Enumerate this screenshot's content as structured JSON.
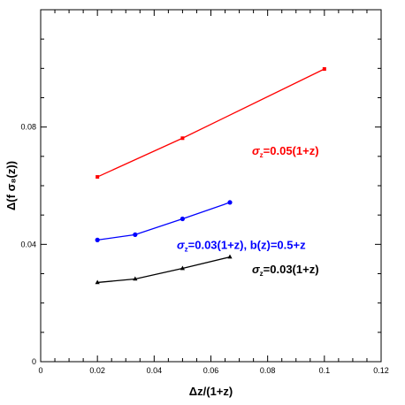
{
  "chart_data": {
    "type": "line",
    "title": "",
    "xlabel": "Δz/(1+z)",
    "ylabel": "Δ(f σ₈(z))",
    "xlim": [
      0,
      0.12
    ],
    "ylim": [
      0,
      0.12
    ],
    "x_ticks": [
      0,
      0.02,
      0.04,
      0.06,
      0.08,
      0.1,
      0.12
    ],
    "x_tick_labels": [
      "0",
      "0.02",
      "0.04",
      "0.06",
      "0.08",
      "0.1",
      "0.12"
    ],
    "y_ticks": [
      0,
      0.04,
      0.08
    ],
    "y_tick_labels": [
      "0",
      "0.04",
      "0.08"
    ],
    "grid": false,
    "series": [
      {
        "color": "#ff0000",
        "marker": "square",
        "x": [
          0.02,
          0.05,
          0.1
        ],
        "y": [
          0.063,
          0.0762,
          0.0998
        ]
      },
      {
        "color": "#0000ff",
        "marker": "circle",
        "x": [
          0.02,
          0.0333,
          0.05,
          0.0667
        ],
        "y": [
          0.0415,
          0.0433,
          0.0487,
          0.0543
        ]
      },
      {
        "color": "#000000",
        "marker": "triangle",
        "x": [
          0.02,
          0.0333,
          0.05,
          0.0667
        ],
        "y": [
          0.027,
          0.0282,
          0.0318,
          0.0357
        ]
      }
    ],
    "annotations": [
      {
        "main": "σ",
        "sub": "z",
        "rest": "=0.05(1+z)",
        "color": "#ff0000",
        "x": 0.0745,
        "y": 0.0705
      },
      {
        "main": "σ",
        "sub": "z",
        "rest": "=0.03(1+z),  b(z)=0.5+z",
        "color": "#0000ff",
        "x": 0.048,
        "y": 0.0385
      },
      {
        "main": "σ",
        "sub": "z",
        "rest": "=0.03(1+z)",
        "color": "#000000",
        "x": 0.0745,
        "y": 0.0302
      }
    ]
  }
}
